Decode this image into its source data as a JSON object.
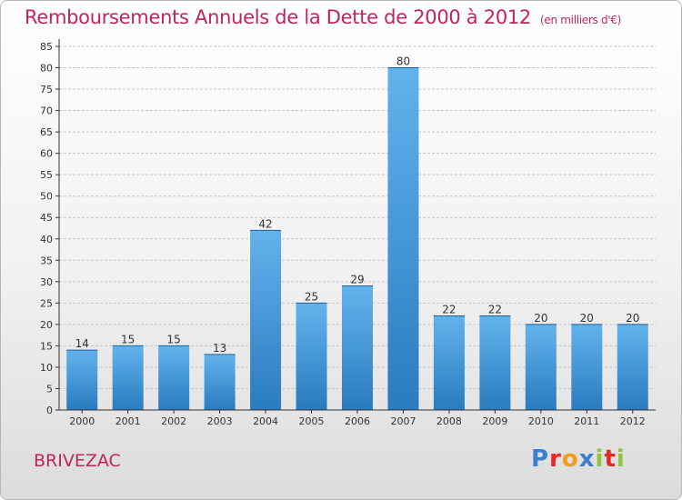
{
  "header": {
    "title": "Remboursements Annuels de la Dette de 2000 à 2012",
    "unit": "(en milliers d'€)"
  },
  "footer": {
    "commune": "BRIVEZAC",
    "logo_text": "Proxiti",
    "logo_letters": [
      "P",
      "r",
      "o",
      "x",
      "i",
      "t",
      "i"
    ],
    "logo_colors": [
      "#3a7fd0",
      "#e8272a",
      "#f59a1b",
      "#3a7fd0",
      "#8cc63f",
      "#e8272a",
      "#8cc63f"
    ]
  },
  "chart_data": {
    "type": "bar",
    "categories": [
      "2000",
      "2001",
      "2002",
      "2003",
      "2004",
      "2005",
      "2006",
      "2007",
      "2008",
      "2009",
      "2010",
      "2011",
      "2012"
    ],
    "values": [
      14,
      15,
      15,
      13,
      42,
      25,
      29,
      80,
      22,
      22,
      20,
      20,
      20
    ],
    "data_labels": [
      "14",
      "15",
      "15",
      "13",
      "42",
      "25",
      "29",
      "80",
      "22",
      "22",
      "20",
      "20",
      "20"
    ],
    "yticks": [
      "0",
      "5",
      "10",
      "15",
      "20",
      "25",
      "30",
      "35",
      "40",
      "45",
      "50",
      "55",
      "60",
      "65",
      "70",
      "75",
      "80",
      "85"
    ],
    "ylim": [
      0,
      85
    ],
    "grid": true,
    "colors": {
      "bar_light": "#62b3ec",
      "bar_dark": "#2a7bbf",
      "grid": "#c6c6c6",
      "axis": "#333333",
      "text": "#333333"
    }
  }
}
